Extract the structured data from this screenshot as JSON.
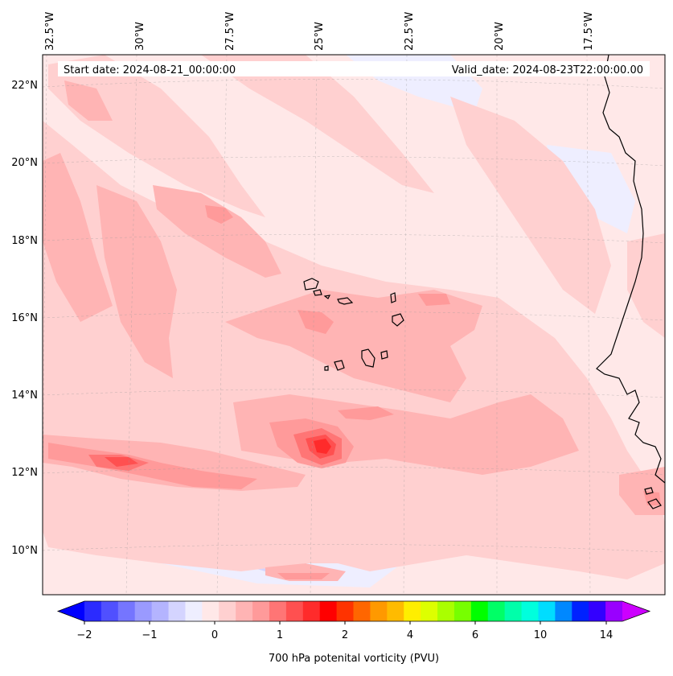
{
  "map": {
    "start_label": "Start date: 2024-08-21_00:00:00",
    "valid_label": "Valid_date: 2024-08-23T22:00:00.00",
    "lon_ticks": [
      {
        "lon": -32.5,
        "label": "32.5°W"
      },
      {
        "lon": -30,
        "label": "30°W"
      },
      {
        "lon": -27.5,
        "label": "27.5°W"
      },
      {
        "lon": -25,
        "label": "25°W"
      },
      {
        "lon": -22.5,
        "label": "22.5°W"
      },
      {
        "lon": -20,
        "label": "20°W"
      },
      {
        "lon": -17.5,
        "label": "17.5°W"
      }
    ],
    "lat_ticks": [
      {
        "lat": 22,
        "label": "22°N"
      },
      {
        "lat": 20,
        "label": "20°N"
      },
      {
        "lat": 18,
        "label": "18°N"
      },
      {
        "lat": 16,
        "label": "16°N"
      },
      {
        "lat": 14,
        "label": "14°N"
      },
      {
        "lat": 12,
        "label": "12°N"
      },
      {
        "lat": 10,
        "label": "10°N"
      }
    ]
  },
  "colorbar": {
    "label": "700 hPa potenital vorticity (PVU)",
    "tick_labels": [
      "−2",
      "−1",
      "0",
      "1",
      "2",
      "4",
      "6",
      "10",
      "14"
    ],
    "colors": [
      "#0000ff",
      "#2b2bff",
      "#5050ff",
      "#7575ff",
      "#9a9aff",
      "#b4b4ff",
      "#d4d4ff",
      "#eeeeff",
      "#ffe8e8",
      "#ffd0d0",
      "#ffb4b4",
      "#ff9a9a",
      "#ff7575",
      "#ff5050",
      "#ff2b2b",
      "#ff0000",
      "#ff3300",
      "#ff6600",
      "#ff9900",
      "#ffbb00",
      "#ffee00",
      "#ddff00",
      "#aaff00",
      "#77ff00",
      "#00ff00",
      "#00ff66",
      "#00ffaa",
      "#00ffdd",
      "#00ddff",
      "#0088ff",
      "#0022ff",
      "#3300ff",
      "#9900ff",
      "#cc00ff"
    ]
  },
  "colors": {
    "ocean_base": "#ffe8e8",
    "pv_light": "#ffd0d0",
    "pv_mid": "#ffb4b4",
    "pv_strong": "#ff9a9a",
    "pv_peak": "#ff5050",
    "pv_max": "#ff2b2b",
    "neg_light": "#eeeeff",
    "neg_mid": "#d4d4ff",
    "neg_strong": "#9a9aff",
    "coast": "#000000"
  }
}
